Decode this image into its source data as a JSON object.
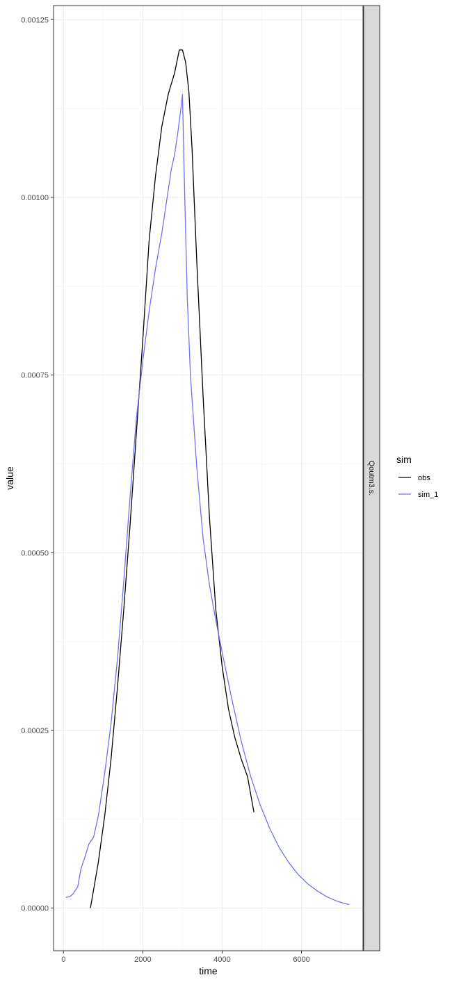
{
  "chart_data": {
    "type": "line",
    "title": "",
    "xlabel": "time",
    "ylabel": "value",
    "xlim": [
      -250,
      7550
    ],
    "ylim": [
      -6e-05,
      0.00127
    ],
    "x_ticks": [
      0,
      2000,
      4000,
      6000
    ],
    "x_tick_labels": [
      "0",
      "2000",
      "4000",
      "6000"
    ],
    "y_ticks": [
      0,
      0.00025,
      0.0005,
      0.00075,
      0.001,
      0.00125
    ],
    "y_tick_labels": [
      "0.00000",
      "0.00025",
      "0.00050",
      "0.00075",
      "0.00100",
      "0.00125"
    ],
    "grid": true,
    "facet_label": "Qoutm3.s.",
    "legend": {
      "title": "sim",
      "position": "right"
    },
    "series": [
      {
        "name": "obs",
        "color": "#000000",
        "x": [
          680,
          880,
          1040,
          1200,
          1360,
          1520,
          1680,
          1840,
          2000,
          2160,
          2320,
          2480,
          2640,
          2800,
          2920,
          3000,
          3080,
          3160,
          3240,
          3360,
          3520,
          3680,
          3840,
          4000,
          4160,
          4320,
          4480,
          4640,
          4800
        ],
        "y": [
          0.0,
          6.5e-05,
          0.00013,
          0.00021,
          0.00031,
          0.00042,
          0.00054,
          0.00067,
          0.0008,
          0.00094,
          0.00103,
          0.0011,
          0.001145,
          0.001175,
          0.0012075,
          0.0012075,
          0.00119,
          0.00115,
          0.00107,
          0.00091,
          0.00072,
          0.00055,
          0.00042,
          0.00034,
          0.00028,
          0.00024,
          0.00021,
          0.000185,
          0.000135
        ]
      },
      {
        "name": "sim_1",
        "color": "#7070f0",
        "x": [
          60,
          160,
          240,
          360,
          440,
          560,
          640,
          760,
          880,
          1040,
          1200,
          1360,
          1520,
          1680,
          1840,
          2000,
          2160,
          2320,
          2480,
          2560,
          2640,
          2720,
          2800,
          2880,
          2960,
          3000,
          3040,
          3120,
          3200,
          3360,
          3520,
          3680,
          3840,
          4000,
          4240,
          4480,
          4720,
          4960,
          5200,
          5440,
          5680,
          5920,
          6160,
          6400,
          6640,
          6880,
          7120,
          7200
        ],
        "y": [
          1.5e-05,
          1.6e-05,
          2e-05,
          3e-05,
          5.5e-05,
          7.5e-05,
          9e-05,
          0.0001,
          0.00013,
          0.00019,
          0.00026,
          0.00035,
          0.00046,
          0.00058,
          0.00069,
          0.00077,
          0.00084,
          0.0009,
          0.00095,
          0.00098,
          0.00101,
          0.00104,
          0.00106,
          0.00109,
          0.001125,
          0.001145,
          0.00104,
          0.00086,
          0.00075,
          0.00062,
          0.00052,
          0.000455,
          0.000405,
          0.00036,
          0.000295,
          0.000235,
          0.000185,
          0.000145,
          0.000112,
          8.5e-05,
          6.4e-05,
          4.7e-05,
          3.4e-05,
          2.4e-05,
          1.6e-05,
          1e-05,
          6e-06,
          5e-06
        ]
      }
    ]
  }
}
